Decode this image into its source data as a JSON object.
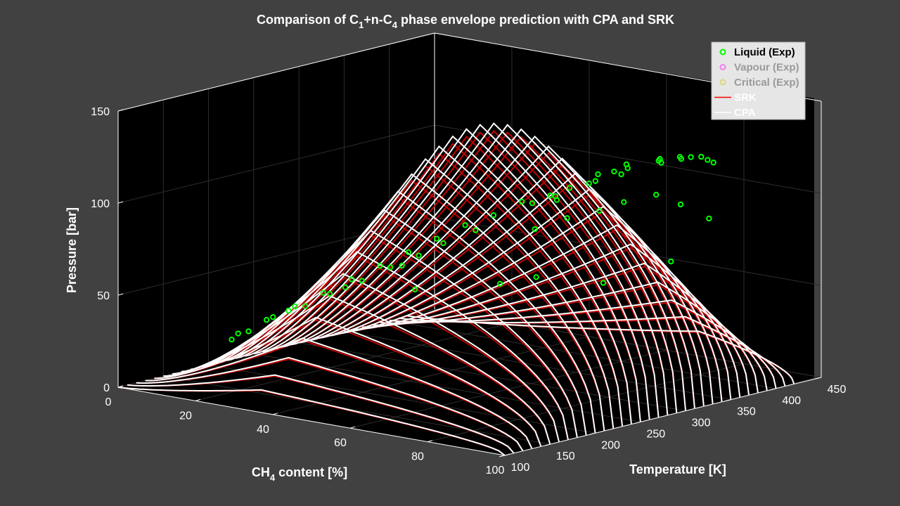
{
  "chart_data": {
    "type": "line",
    "projection": "3d",
    "title": {
      "prefix": "Comparison of C",
      "sub1": "1",
      "mid": "+n-C",
      "sub2": "4",
      "suffix": " phase envelope prediction with CPA and SRK"
    },
    "axes": {
      "x": {
        "label_prefix": "CH",
        "label_sub": "4",
        "label_suffix": " content   [%]",
        "range": [
          0,
          100
        ],
        "ticks": [
          "0",
          "20",
          "40",
          "60",
          "80",
          "100"
        ]
      },
      "y": {
        "label": "Temperature   [K]",
        "range": [
          100,
          450
        ],
        "ticks": [
          "100",
          "150",
          "200",
          "250",
          "300",
          "350",
          "400",
          "450"
        ]
      },
      "z": {
        "label": "Pressure   [bar]",
        "range": [
          0,
          150
        ],
        "ticks": [
          "0",
          "50",
          "100",
          "150"
        ]
      }
    },
    "grid": true,
    "legend": {
      "position": "top-right",
      "entries": [
        {
          "label": "Liquid (Exp)",
          "marker": "circle",
          "color": "#00ff00",
          "active": true
        },
        {
          "label": "Vapour (Exp)",
          "marker": "circle",
          "color": "#ff00ff",
          "active": false
        },
        {
          "label": "Critical (Exp)",
          "marker": "circle",
          "color": "#c8c800",
          "active": false
        },
        {
          "label": "SRK",
          "marker": "line",
          "color": "#ff0000",
          "active": true
        },
        {
          "label": "CPA",
          "marker": "line",
          "color": "#ffffff",
          "active": true
        }
      ]
    },
    "isotherms_K": [
      100,
      110,
      120,
      130,
      140,
      150,
      160,
      170,
      180,
      190,
      200,
      210,
      220,
      230,
      240,
      250,
      260,
      270,
      280,
      290,
      300,
      310,
      320,
      330,
      340,
      350,
      360,
      370,
      380,
      390,
      400,
      410,
      420
    ],
    "series": [
      {
        "name": "SRK",
        "color": "#c00000",
        "model_scale": 1.0
      },
      {
        "name": "CPA",
        "color": "#ffffff",
        "model_scale": 1.03
      }
    ],
    "liquid_exp_points": [
      {
        "x": 60,
        "y": 290,
        "z": 100
      },
      {
        "x": 70,
        "y": 300,
        "z": 110
      },
      {
        "x": 75,
        "y": 310,
        "z": 118
      },
      {
        "x": 80,
        "y": 320,
        "z": 124
      },
      {
        "x": 72,
        "y": 320,
        "z": 112
      },
      {
        "x": 78,
        "y": 330,
        "z": 120
      },
      {
        "x": 84,
        "y": 340,
        "z": 126
      },
      {
        "x": 88,
        "y": 345,
        "z": 128
      },
      {
        "x": 65,
        "y": 300,
        "z": 104
      },
      {
        "x": 55,
        "y": 280,
        "z": 92
      },
      {
        "x": 50,
        "y": 270,
        "z": 86
      },
      {
        "x": 45,
        "y": 260,
        "z": 78
      },
      {
        "x": 40,
        "y": 250,
        "z": 70
      },
      {
        "x": 35,
        "y": 240,
        "z": 62
      },
      {
        "x": 30,
        "y": 230,
        "z": 54
      },
      {
        "x": 25,
        "y": 220,
        "z": 46
      },
      {
        "x": 20,
        "y": 210,
        "z": 38
      },
      {
        "x": 15,
        "y": 200,
        "z": 30
      },
      {
        "x": 10,
        "y": 190,
        "z": 22
      },
      {
        "x": 58,
        "y": 310,
        "z": 96
      },
      {
        "x": 62,
        "y": 320,
        "z": 98
      },
      {
        "x": 68,
        "y": 330,
        "z": 108
      },
      {
        "x": 74,
        "y": 340,
        "z": 114
      },
      {
        "x": 82,
        "y": 350,
        "z": 122
      },
      {
        "x": 86,
        "y": 355,
        "z": 125
      },
      {
        "x": 90,
        "y": 360,
        "z": 127
      },
      {
        "x": 92,
        "y": 365,
        "z": 124
      },
      {
        "x": 48,
        "y": 290,
        "z": 80
      },
      {
        "x": 42,
        "y": 280,
        "z": 72
      },
      {
        "x": 38,
        "y": 270,
        "z": 65
      },
      {
        "x": 33,
        "y": 260,
        "z": 58
      },
      {
        "x": 28,
        "y": 250,
        "z": 50
      },
      {
        "x": 22,
        "y": 240,
        "z": 42
      },
      {
        "x": 18,
        "y": 230,
        "z": 35
      },
      {
        "x": 12,
        "y": 220,
        "z": 28
      },
      {
        "x": 8,
        "y": 210,
        "z": 20
      },
      {
        "x": 66,
        "y": 350,
        "z": 90
      },
      {
        "x": 60,
        "y": 340,
        "z": 85
      },
      {
        "x": 54,
        "y": 330,
        "z": 78
      },
      {
        "x": 70,
        "y": 360,
        "z": 95
      },
      {
        "x": 76,
        "y": 370,
        "z": 100
      },
      {
        "x": 80,
        "y": 380,
        "z": 95
      },
      {
        "x": 85,
        "y": 390,
        "z": 88
      },
      {
        "x": 45,
        "y": 330,
        "z": 45
      },
      {
        "x": 30,
        "y": 300,
        "z": 40
      },
      {
        "x": 52,
        "y": 340,
        "z": 50
      },
      {
        "x": 60,
        "y": 380,
        "z": 45
      },
      {
        "x": 74,
        "y": 395,
        "z": 60
      },
      {
        "x": 36,
        "y": 260,
        "z": 60
      },
      {
        "x": 26,
        "y": 240,
        "z": 47
      },
      {
        "x": 16,
        "y": 220,
        "z": 33
      },
      {
        "x": 6,
        "y": 200,
        "z": 16
      },
      {
        "x": 64,
        "y": 310,
        "z": 102
      },
      {
        "x": 78,
        "y": 315,
        "z": 120
      },
      {
        "x": 86,
        "y": 330,
        "z": 127
      },
      {
        "x": 92,
        "y": 340,
        "z": 130
      },
      {
        "x": 94,
        "y": 350,
        "z": 128
      }
    ]
  }
}
